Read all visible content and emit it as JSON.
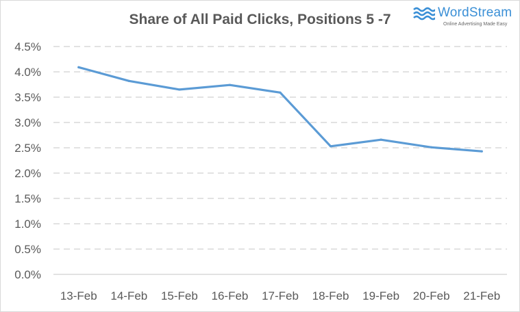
{
  "logo": {
    "name": "WordStream",
    "tagline": "Online Advertising Made Easy",
    "color": "#3a8fd6"
  },
  "chart_data": {
    "type": "line",
    "title": "Share of All Paid Clicks, Positions 5 -7",
    "xlabel": "",
    "ylabel": "",
    "categories": [
      "13-Feb",
      "14-Feb",
      "15-Feb",
      "16-Feb",
      "17-Feb",
      "18-Feb",
      "19-Feb",
      "20-Feb",
      "21-Feb"
    ],
    "series": [
      {
        "values": [
          4.09,
          3.82,
          3.65,
          3.74,
          3.59,
          2.53,
          2.66,
          2.51,
          2.43
        ],
        "color": "#5b9bd5"
      }
    ],
    "ylim": [
      0,
      4.5
    ],
    "yticks": [
      "0.0%",
      "0.5%",
      "1.0%",
      "1.5%",
      "2.0%",
      "2.5%",
      "3.0%",
      "3.5%",
      "4.0%",
      "4.5%"
    ],
    "grid": true,
    "grid_style": "dashed",
    "legend": "none"
  }
}
